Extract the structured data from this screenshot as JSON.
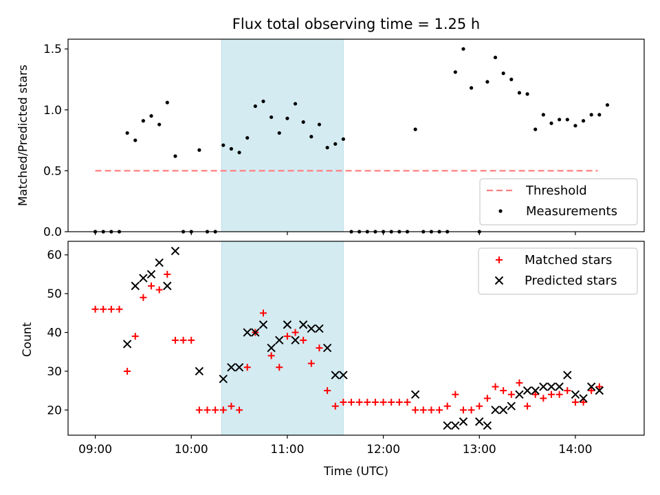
{
  "chart_data": [
    {
      "type": "scatter",
      "title": "Flux total observing time = 1.25 h",
      "ylabel": "Matched/Predicted stars",
      "xlabel": "",
      "xlim": [
        "08:43",
        "14:43"
      ],
      "ylim": [
        0,
        1.58
      ],
      "x_ticks": [
        "09:00",
        "10:00",
        "11:00",
        "12:00",
        "13:00",
        "14:00"
      ],
      "y_ticks": [
        0.0,
        0.5,
        1.0,
        1.5
      ],
      "y_tick_labels": [
        "0.0",
        "0.5",
        "1.0",
        "1.5"
      ],
      "shaded_span": {
        "start": "10:19",
        "end": "11:35",
        "color": "#add8e6"
      },
      "legend_position": "bottom-right",
      "series": [
        {
          "name": "Threshold",
          "kind": "line",
          "style": "dashed",
          "color": "#ff7f7f",
          "x": [
            "09:00",
            "14:14"
          ],
          "y": [
            0.5,
            0.5
          ]
        },
        {
          "name": "Measurements",
          "kind": "scatter",
          "marker": "dot",
          "color": "#000000",
          "points": [
            [
              "09:00",
              0.0
            ],
            [
              "09:05",
              0.0
            ],
            [
              "09:10",
              0.0
            ],
            [
              "09:15",
              0.0
            ],
            [
              "09:20",
              0.81
            ],
            [
              "09:25",
              0.75
            ],
            [
              "09:30",
              0.91
            ],
            [
              "09:35",
              0.95
            ],
            [
              "09:40",
              0.88
            ],
            [
              "09:45",
              1.06
            ],
            [
              "09:50",
              0.62
            ],
            [
              "09:55",
              0.0
            ],
            [
              "10:00",
              0.0
            ],
            [
              "10:05",
              0.67
            ],
            [
              "10:10",
              0.0
            ],
            [
              "10:15",
              0.0
            ],
            [
              "10:20",
              0.71
            ],
            [
              "10:25",
              0.68
            ],
            [
              "10:30",
              0.65
            ],
            [
              "10:35",
              0.77
            ],
            [
              "10:40",
              1.03
            ],
            [
              "10:45",
              1.07
            ],
            [
              "10:50",
              0.94
            ],
            [
              "10:55",
              0.81
            ],
            [
              "11:00",
              0.93
            ],
            [
              "11:05",
              1.05
            ],
            [
              "11:10",
              0.9
            ],
            [
              "11:15",
              0.78
            ],
            [
              "11:20",
              0.88
            ],
            [
              "11:25",
              0.69
            ],
            [
              "11:30",
              0.72
            ],
            [
              "11:35",
              0.76
            ],
            [
              "11:40",
              0.0
            ],
            [
              "11:45",
              0.0
            ],
            [
              "11:50",
              0.0
            ],
            [
              "11:55",
              0.0
            ],
            [
              "12:00",
              0.0
            ],
            [
              "12:05",
              0.0
            ],
            [
              "12:10",
              0.0
            ],
            [
              "12:15",
              0.0
            ],
            [
              "12:20",
              0.84
            ],
            [
              "12:25",
              0.0
            ],
            [
              "12:30",
              0.0
            ],
            [
              "12:35",
              0.0
            ],
            [
              "12:40",
              0.0
            ],
            [
              "12:45",
              1.31
            ],
            [
              "12:50",
              1.5
            ],
            [
              "12:55",
              1.18
            ],
            [
              "13:00",
              0.0
            ],
            [
              "13:05",
              1.23
            ],
            [
              "13:10",
              1.43
            ],
            [
              "13:15",
              1.3
            ],
            [
              "13:20",
              1.25
            ],
            [
              "13:25",
              1.14
            ],
            [
              "13:30",
              1.13
            ],
            [
              "13:35",
              0.84
            ],
            [
              "13:40",
              0.96
            ],
            [
              "13:45",
              0.89
            ],
            [
              "13:50",
              0.92
            ],
            [
              "13:55",
              0.92
            ],
            [
              "14:00",
              0.87
            ],
            [
              "14:05",
              0.91
            ],
            [
              "14:10",
              0.96
            ],
            [
              "14:15",
              0.96
            ],
            [
              "14:20",
              1.04
            ]
          ]
        }
      ]
    },
    {
      "type": "scatter",
      "title": "",
      "ylabel": "Count",
      "xlabel": "Time (UTC)",
      "xlim": [
        "08:43",
        "14:43"
      ],
      "ylim": [
        13.5,
        63.5
      ],
      "x_ticks": [
        "09:00",
        "10:00",
        "11:00",
        "12:00",
        "13:00",
        "14:00"
      ],
      "y_ticks": [
        20,
        30,
        40,
        50,
        60
      ],
      "y_tick_labels": [
        "20",
        "30",
        "40",
        "50",
        "60"
      ],
      "shaded_span": {
        "start": "10:19",
        "end": "11:35",
        "color": "#add8e6"
      },
      "legend_position": "top-right",
      "series": [
        {
          "name": "Matched stars",
          "kind": "scatter",
          "marker": "plus",
          "color": "#ff0000",
          "points": [
            [
              "09:00",
              46
            ],
            [
              "09:05",
              46
            ],
            [
              "09:10",
              46
            ],
            [
              "09:15",
              46
            ],
            [
              "09:20",
              30
            ],
            [
              "09:25",
              39
            ],
            [
              "09:30",
              49
            ],
            [
              "09:35",
              52
            ],
            [
              "09:40",
              51
            ],
            [
              "09:45",
              55
            ],
            [
              "09:50",
              38
            ],
            [
              "09:55",
              38
            ],
            [
              "10:00",
              38
            ],
            [
              "10:05",
              20
            ],
            [
              "10:10",
              20
            ],
            [
              "10:15",
              20
            ],
            [
              "10:20",
              20
            ],
            [
              "10:25",
              21
            ],
            [
              "10:30",
              20
            ],
            [
              "10:35",
              31
            ],
            [
              "10:40",
              40
            ],
            [
              "10:45",
              45
            ],
            [
              "10:50",
              34
            ],
            [
              "10:55",
              31
            ],
            [
              "11:00",
              39
            ],
            [
              "11:05",
              40
            ],
            [
              "11:10",
              38
            ],
            [
              "11:15",
              32
            ],
            [
              "11:20",
              36
            ],
            [
              "11:25",
              25
            ],
            [
              "11:30",
              21
            ],
            [
              "11:35",
              22
            ],
            [
              "11:40",
              22
            ],
            [
              "11:45",
              22
            ],
            [
              "11:50",
              22
            ],
            [
              "11:55",
              22
            ],
            [
              "12:00",
              22
            ],
            [
              "12:05",
              22
            ],
            [
              "12:10",
              22
            ],
            [
              "12:15",
              22
            ],
            [
              "12:20",
              20
            ],
            [
              "12:25",
              20
            ],
            [
              "12:30",
              20
            ],
            [
              "12:35",
              20
            ],
            [
              "12:40",
              21
            ],
            [
              "12:45",
              24
            ],
            [
              "12:50",
              20
            ],
            [
              "12:55",
              20
            ],
            [
              "13:00",
              21
            ],
            [
              "13:05",
              23
            ],
            [
              "13:10",
              26
            ],
            [
              "13:15",
              25
            ],
            [
              "13:20",
              24
            ],
            [
              "13:25",
              27
            ],
            [
              "13:30",
              21
            ],
            [
              "13:35",
              24
            ],
            [
              "13:40",
              23
            ],
            [
              "13:45",
              24
            ],
            [
              "13:50",
              24
            ],
            [
              "13:55",
              25
            ],
            [
              "14:00",
              22
            ],
            [
              "14:05",
              22
            ],
            [
              "14:10",
              25
            ],
            [
              "14:15",
              26
            ]
          ]
        },
        {
          "name": "Predicted stars",
          "kind": "scatter",
          "marker": "x",
          "color": "#000000",
          "points": [
            [
              "09:20",
              37
            ],
            [
              "09:25",
              52
            ],
            [
              "09:30",
              54
            ],
            [
              "09:35",
              55
            ],
            [
              "09:40",
              58
            ],
            [
              "09:45",
              52
            ],
            [
              "09:50",
              61
            ],
            [
              "10:05",
              30
            ],
            [
              "10:20",
              28
            ],
            [
              "10:25",
              31
            ],
            [
              "10:30",
              31
            ],
            [
              "10:35",
              40
            ],
            [
              "10:40",
              40
            ],
            [
              "10:45",
              42
            ],
            [
              "10:50",
              36
            ],
            [
              "10:55",
              38
            ],
            [
              "11:00",
              42
            ],
            [
              "11:05",
              38
            ],
            [
              "11:10",
              42
            ],
            [
              "11:15",
              41
            ],
            [
              "11:20",
              41
            ],
            [
              "11:25",
              36
            ],
            [
              "11:30",
              29
            ],
            [
              "11:35",
              29
            ],
            [
              "12:20",
              24
            ],
            [
              "12:40",
              16
            ],
            [
              "12:45",
              16
            ],
            [
              "12:50",
              17
            ],
            [
              "13:00",
              17
            ],
            [
              "13:05",
              16
            ],
            [
              "13:10",
              20
            ],
            [
              "13:15",
              20
            ],
            [
              "13:20",
              21
            ],
            [
              "13:25",
              24
            ],
            [
              "13:30",
              25
            ],
            [
              "13:35",
              25
            ],
            [
              "13:40",
              26
            ],
            [
              "13:45",
              26
            ],
            [
              "13:50",
              26
            ],
            [
              "13:55",
              29
            ],
            [
              "14:00",
              24
            ],
            [
              "14:05",
              23
            ],
            [
              "14:10",
              26
            ],
            [
              "14:15",
              25
            ]
          ]
        }
      ]
    }
  ]
}
